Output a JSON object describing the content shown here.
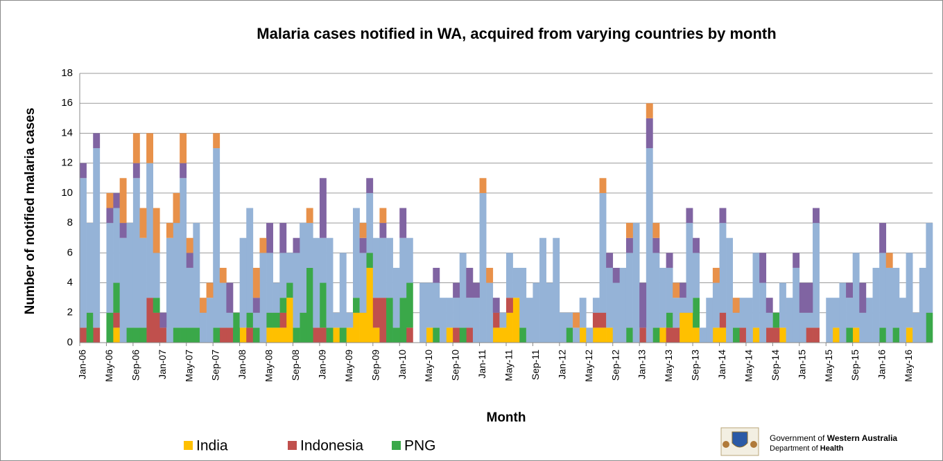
{
  "chart_data": {
    "type": "stacked_bar",
    "title": "Malaria cases notified in WA, acquired from varying countries by month",
    "x_label": "Month",
    "y_label": "Number of notified malaria cases",
    "ylim": [
      0,
      18
    ],
    "yticks": [
      0,
      2,
      4,
      6,
      8,
      10,
      12,
      14,
      16,
      18
    ],
    "grid": true,
    "legend": "bottom-left",
    "categories": [
      "Jan-06",
      null,
      null,
      null,
      "May-06",
      null,
      null,
      null,
      "Sep-06",
      null,
      null,
      null,
      "Jan-07",
      null,
      null,
      null,
      "May-07",
      null,
      null,
      null,
      "Sep-07",
      null,
      null,
      null,
      "Jan-08",
      null,
      null,
      null,
      "May-08",
      null,
      null,
      null,
      "Sep-08",
      null,
      null,
      null,
      "Jan-09",
      null,
      null,
      null,
      "May-09",
      null,
      null,
      null,
      "Sep-09",
      null,
      null,
      null,
      "Jan-10",
      null,
      null,
      null,
      "May-10",
      null,
      null,
      null,
      "Sep-10",
      null,
      null,
      null,
      "Jan-11",
      null,
      null,
      null,
      "May-11",
      null,
      null,
      null,
      "Sep-11",
      null,
      null,
      null,
      "Jan-12",
      null,
      null,
      null,
      "May-12",
      null,
      null,
      null,
      "Sep-12",
      null,
      null,
      null,
      "Jan-13",
      null,
      null,
      null,
      "May-13",
      null,
      null,
      null,
      "Sep-13",
      null,
      null,
      null,
      "Jan-14",
      null,
      null,
      null,
      "May-14",
      null,
      null,
      null,
      "Sep-14",
      null,
      null,
      null,
      "Jan-15",
      null,
      null,
      null,
      "May-15",
      null,
      null,
      null,
      "Sep-15",
      null,
      null,
      null,
      "Jan-16",
      null,
      null,
      null,
      "May-16",
      null,
      null,
      null
    ],
    "series": [
      {
        "name": "India",
        "color": "#FFC000",
        "values": [
          0,
          0,
          0,
          0,
          0,
          1,
          0,
          0,
          0,
          0,
          0,
          0,
          0,
          0,
          0,
          0,
          0,
          0,
          0,
          0,
          0,
          0,
          0,
          0,
          1,
          0,
          0,
          0,
          1,
          1,
          1,
          3,
          0,
          0,
          0,
          0,
          0,
          0,
          1,
          0,
          1,
          2,
          2,
          5,
          1,
          0,
          0,
          0,
          0,
          0,
          0,
          0,
          1,
          0,
          0,
          1,
          0,
          0,
          0,
          0,
          0,
          0,
          1,
          1,
          2,
          3,
          0,
          0,
          0,
          0,
          0,
          0,
          0,
          0,
          0,
          1,
          0,
          1,
          1,
          1,
          0,
          0,
          0,
          0,
          0,
          0,
          0,
          1,
          0,
          0,
          2,
          2,
          1,
          0,
          0,
          1,
          1,
          0,
          0,
          0,
          0,
          1,
          0,
          0,
          0,
          1,
          0,
          0,
          0,
          0,
          0,
          0,
          0,
          1,
          0,
          0,
          1,
          0,
          0,
          0,
          0,
          0,
          0,
          0,
          1,
          0,
          0,
          0
        ]
      },
      {
        "name": "Indonesia",
        "color": "#C0504D",
        "values": [
          1,
          0,
          1,
          0,
          0,
          1,
          0,
          0,
          0,
          0,
          3,
          2,
          1,
          0,
          0,
          0,
          0,
          0,
          0,
          0,
          0,
          1,
          1,
          0,
          0,
          1,
          0,
          0,
          0,
          0,
          1,
          0,
          0,
          0,
          0,
          1,
          1,
          0,
          0,
          0,
          0,
          0,
          0,
          0,
          2,
          3,
          0,
          0,
          0,
          1,
          0,
          0,
          0,
          0,
          0,
          0,
          1,
          0,
          1,
          0,
          0,
          0,
          1,
          0,
          1,
          0,
          0,
          0,
          0,
          0,
          0,
          0,
          0,
          0,
          0,
          0,
          0,
          1,
          1,
          0,
          0,
          0,
          0,
          0,
          1,
          0,
          0,
          0,
          1,
          1,
          0,
          0,
          0,
          0,
          0,
          0,
          1,
          0,
          0,
          1,
          0,
          0,
          0,
          1,
          1,
          0,
          0,
          0,
          0,
          1,
          1,
          0,
          0,
          0,
          0,
          0,
          0,
          0,
          0,
          0,
          0,
          0,
          0,
          0,
          0,
          0,
          0,
          0
        ]
      },
      {
        "name": "PNG",
        "color": "#3AA849",
        "values": [
          0,
          2,
          0,
          0,
          2,
          2,
          0,
          1,
          1,
          1,
          0,
          1,
          0,
          0,
          1,
          1,
          1,
          1,
          0,
          0,
          1,
          0,
          0,
          2,
          0,
          1,
          1,
          0,
          1,
          1,
          1,
          1,
          1,
          2,
          5,
          0,
          3,
          1,
          0,
          1,
          0,
          1,
          0,
          1,
          0,
          0,
          3,
          1,
          3,
          3,
          0,
          0,
          0,
          1,
          0,
          0,
          0,
          1,
          0,
          0,
          0,
          0,
          0,
          0,
          0,
          0,
          1,
          0,
          0,
          0,
          0,
          0,
          0,
          1,
          0,
          0,
          0,
          0,
          0,
          0,
          0,
          0,
          1,
          0,
          0,
          0,
          1,
          0,
          1,
          0,
          0,
          0,
          2,
          0,
          0,
          0,
          0,
          0,
          1,
          0,
          0,
          0,
          0,
          0,
          1,
          0,
          0,
          0,
          0,
          0,
          0,
          0,
          0,
          0,
          0,
          1,
          0,
          0,
          0,
          0,
          1,
          0,
          1,
          0,
          0,
          0,
          0,
          2
        ]
      },
      {
        "color": "#95B3D7",
        "values": [
          10,
          6,
          12,
          0,
          6,
          5,
          7,
          7,
          10,
          6,
          9,
          3,
          0,
          7,
          7,
          10,
          4,
          7,
          2,
          3,
          12,
          3,
          1,
          0,
          6,
          7,
          1,
          6,
          4,
          2,
          3,
          2,
          5,
          6,
          3,
          6,
          3,
          6,
          1,
          5,
          1,
          6,
          4,
          4,
          4,
          4,
          4,
          4,
          4,
          3,
          0,
          4,
          3,
          3,
          3,
          2,
          2,
          5,
          2,
          3,
          10,
          4,
          0,
          1,
          3,
          2,
          4,
          3,
          4,
          7,
          4,
          7,
          2,
          1,
          1,
          2,
          1,
          1,
          8,
          4,
          4,
          5,
          5,
          8,
          0,
          13,
          5,
          4,
          3,
          2,
          1,
          6,
          3,
          1,
          3,
          3,
          6,
          7,
          1,
          2,
          3,
          5,
          4,
          1,
          0,
          3,
          3,
          5,
          2,
          1,
          7,
          0,
          3,
          2,
          4,
          2,
          5,
          2,
          3,
          5,
          5,
          5,
          4,
          3,
          5,
          2,
          5,
          6
        ]
      },
      {
        "color": "#8064A2",
        "values": [
          1,
          0,
          1,
          0,
          1,
          1,
          1,
          0,
          1,
          0,
          0,
          0,
          1,
          0,
          0,
          1,
          1,
          0,
          0,
          0,
          0,
          0,
          2,
          0,
          0,
          0,
          1,
          0,
          2,
          0,
          2,
          0,
          1,
          0,
          0,
          0,
          4,
          0,
          0,
          0,
          0,
          0,
          1,
          1,
          0,
          1,
          0,
          0,
          2,
          0,
          0,
          0,
          0,
          1,
          0,
          0,
          1,
          0,
          2,
          1,
          0,
          0,
          1,
          0,
          0,
          0,
          0,
          0,
          0,
          0,
          0,
          0,
          0,
          0,
          0,
          0,
          0,
          0,
          0,
          1,
          1,
          0,
          1,
          0,
          3,
          2,
          1,
          0,
          1,
          0,
          1,
          1,
          1,
          0,
          0,
          0,
          1,
          0,
          0,
          0,
          0,
          0,
          2,
          1,
          0,
          0,
          0,
          1,
          2,
          2,
          1,
          0,
          0,
          0,
          0,
          1,
          0,
          2,
          0,
          0,
          2,
          0,
          0,
          0,
          0,
          0,
          0,
          0
        ]
      },
      {
        "color": "#E8914A",
        "values": [
          0,
          0,
          0,
          0,
          1,
          0,
          3,
          0,
          2,
          2,
          2,
          3,
          0,
          1,
          2,
          2,
          1,
          0,
          1,
          1,
          1,
          1,
          0,
          0,
          0,
          0,
          2,
          1,
          0,
          0,
          0,
          0,
          0,
          0,
          1,
          0,
          0,
          0,
          0,
          0,
          0,
          0,
          1,
          0,
          0,
          1,
          0,
          0,
          0,
          0,
          0,
          0,
          0,
          0,
          0,
          0,
          0,
          0,
          0,
          0,
          1,
          1,
          0,
          0,
          0,
          0,
          0,
          0,
          0,
          0,
          0,
          0,
          0,
          0,
          1,
          0,
          0,
          0,
          1,
          0,
          0,
          0,
          1,
          0,
          0,
          1,
          1,
          0,
          0,
          1,
          0,
          0,
          0,
          0,
          0,
          1,
          0,
          0,
          1,
          0,
          0,
          0,
          0,
          0,
          0,
          0,
          0,
          0,
          0,
          0,
          0,
          0,
          0,
          0,
          0,
          0,
          0,
          0,
          0,
          0,
          0,
          1,
          0,
          0,
          0,
          0,
          0,
          0
        ]
      }
    ],
    "logo": {
      "line1": [
        "Government of",
        "Western Australia"
      ],
      "line2": [
        "Department of",
        "Health"
      ]
    }
  }
}
